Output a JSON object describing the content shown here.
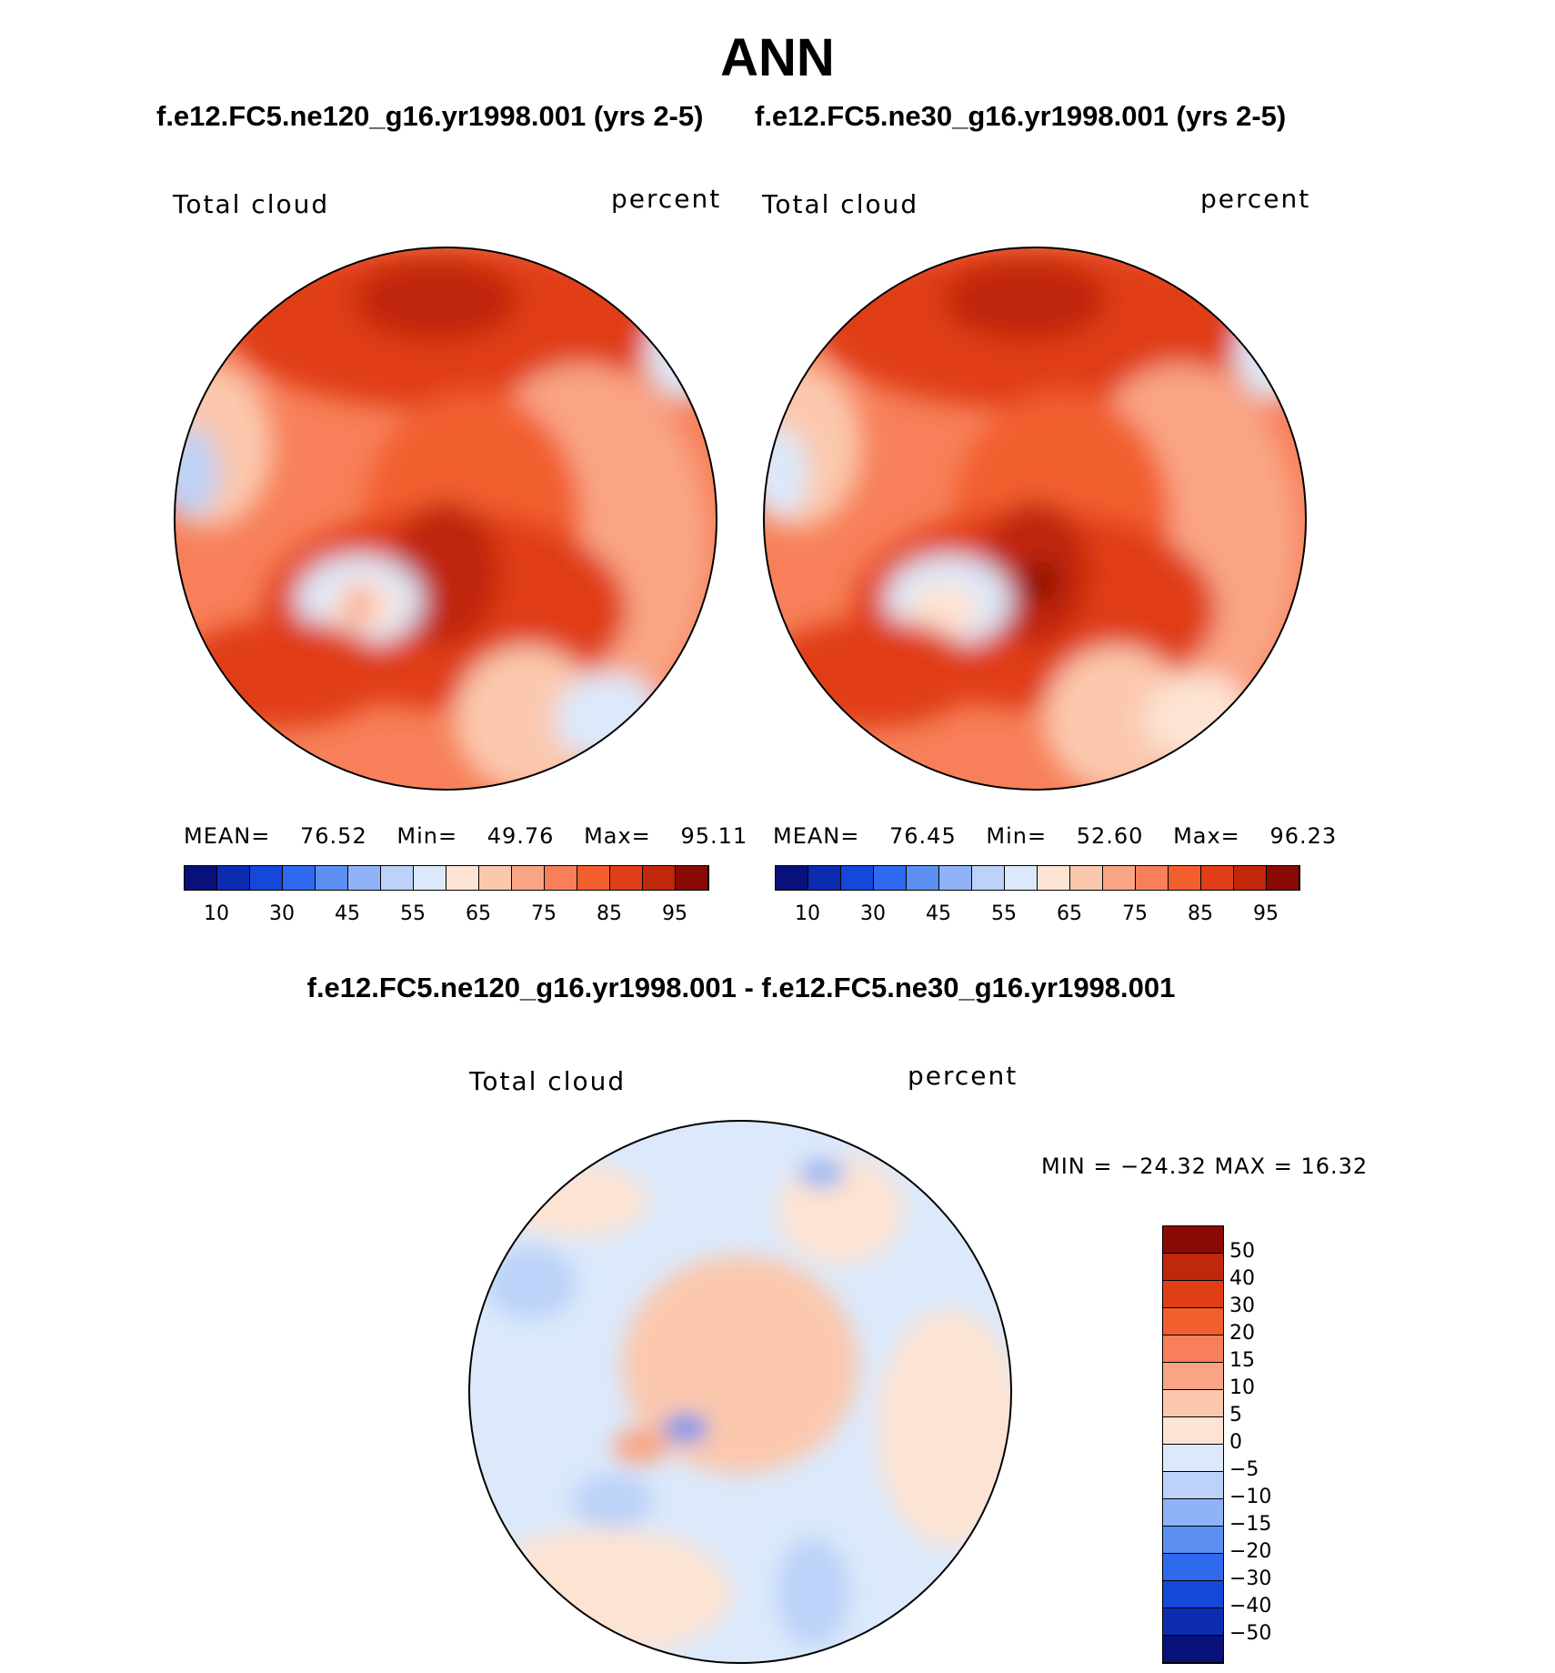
{
  "title": "ANN",
  "panels": {
    "left": {
      "case_title": "f.e12.FC5.ne120_g16.yr1998.001 (yrs 2-5)",
      "variable": "Total cloud",
      "units": "percent",
      "stats": {
        "mean_label": "MEAN=",
        "mean": "76.52",
        "min_label": "Min=",
        "min": "49.76",
        "max_label": "Max=",
        "max": "95.11"
      }
    },
    "right": {
      "case_title": "f.e12.FC5.ne30_g16.yr1998.001 (yrs 2-5)",
      "variable": "Total cloud",
      "units": "percent",
      "stats": {
        "mean_label": "MEAN=",
        "mean": "76.45",
        "min_label": "Min=",
        "min": "52.60",
        "max_label": "Max=",
        "max": "96.23"
      }
    },
    "diff": {
      "case_title": "f.e12.FC5.ne120_g16.yr1998.001 - f.e12.FC5.ne30_g16.yr1998.001",
      "variable": "Total cloud",
      "units": "percent",
      "minmax_text": "MIN = −24.32 MAX =   16.32"
    }
  },
  "colorbars": {
    "abs": {
      "colors": [
        "#08107a",
        "#0c2cb0",
        "#1547d8",
        "#2f69ee",
        "#5b8ff2",
        "#8fb3f6",
        "#bcd2f8",
        "#dbe9fb",
        "#fde3d3",
        "#fbc8ad",
        "#f9a585",
        "#f7805a",
        "#f25e2e",
        "#e03e16",
        "#c0270b",
        "#8a0a06"
      ],
      "tick_labels": [
        "10",
        "30",
        "45",
        "55",
        "65",
        "75",
        "85",
        "95"
      ]
    },
    "diff": {
      "colors": [
        "#8a0a06",
        "#c0270b",
        "#e03e16",
        "#f25e2e",
        "#f7805a",
        "#f9a585",
        "#fbc8ad",
        "#fde3d3",
        "#dbe9fb",
        "#bcd2f8",
        "#8fb3f6",
        "#5b8ff2",
        "#2f69ee",
        "#1547d8",
        "#0c2cb0",
        "#08107a"
      ],
      "tick_labels": [
        "50",
        "40",
        "30",
        "20",
        "15",
        "10",
        "5",
        "0",
        "−5",
        "−10",
        "−15",
        "−20",
        "−30",
        "−40",
        "−50"
      ]
    }
  }
}
